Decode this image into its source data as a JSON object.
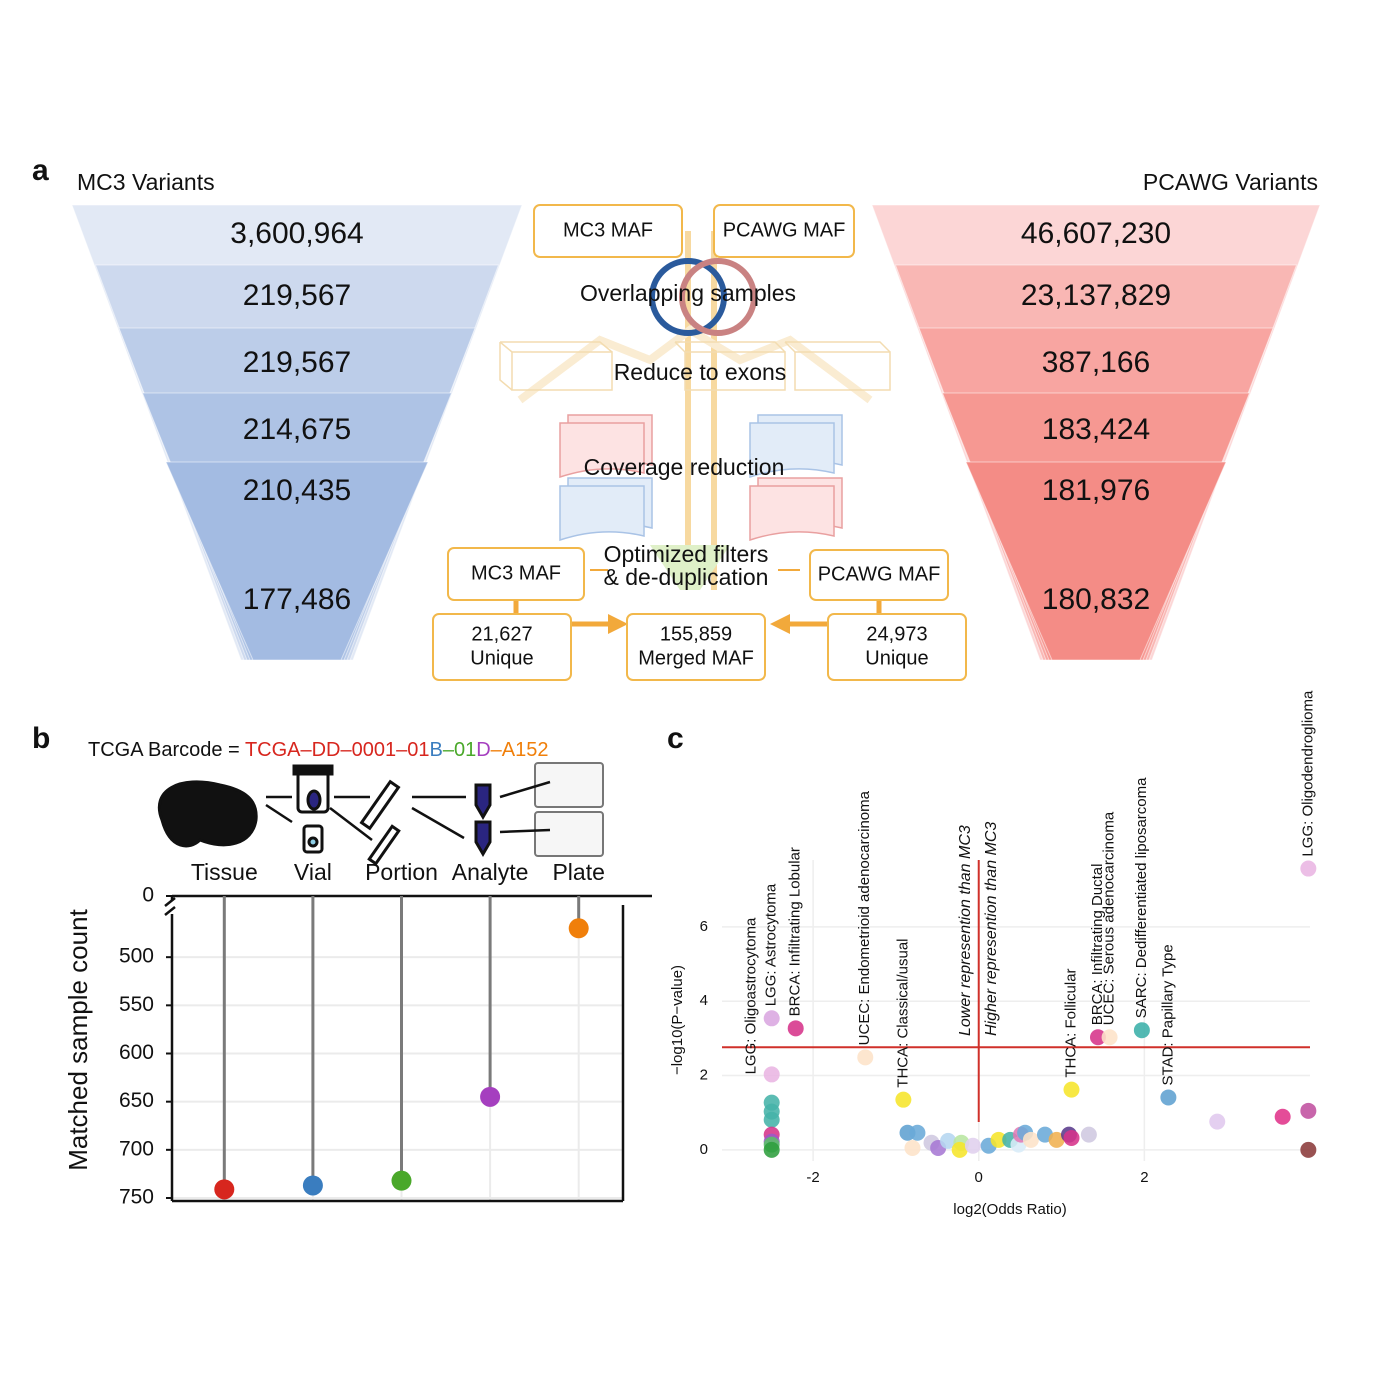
{
  "panel_a": {
    "label": "a",
    "left_title": "MC3 Variants",
    "right_title": "PCAWG Variants",
    "left_counts": [
      "3,600,964",
      "219,567",
      "219,567",
      "214,675",
      "210,435",
      "177,486"
    ],
    "right_counts": [
      "46,607,230",
      "23,137,829",
      "387,166",
      "183,424",
      "181,976",
      "180,832"
    ],
    "top_boxes": [
      "MC3 MAF",
      "PCAWG MAF"
    ],
    "steps": [
      "Overlapping samples",
      "Reduce to exons",
      "Coverage reduction",
      "Optimized filters",
      "& de-duplication"
    ],
    "bottom_boxes": [
      "MC3 MAF",
      "PCAWG MAF"
    ],
    "results": [
      {
        "count": "21,627",
        "label": "Unique"
      },
      {
        "count": "155,859",
        "label": "Merged MAF"
      },
      {
        "count": "24,973",
        "label": "Unique"
      }
    ]
  },
  "chart_data": [
    {
      "type": "lollipop",
      "panel_label": "b",
      "barcode_title": "TCGA Barcode = ",
      "barcode_parts": [
        {
          "text": "TCGA–DD–0001–01",
          "color": "#d7261e"
        },
        {
          "text": "B",
          "color": "#3a7dbf"
        },
        {
          "text": "–01",
          "color": "#4aa82a"
        },
        {
          "text": "D",
          "color": "#a53fbf"
        },
        {
          "text": "–A152",
          "color": "#f07f0a"
        }
      ],
      "categories": [
        "Tissue",
        "Vial",
        "Portion",
        "Analyte",
        "Plate"
      ],
      "values": [
        741,
        737,
        732,
        645,
        470
      ],
      "colors": [
        "#d7261e",
        "#3a7dbf",
        "#4aa82a",
        "#a53fbf",
        "#f07f0a"
      ],
      "y_label": "Matched sample count",
      "ylim": [
        450,
        750
      ],
      "yticks": [
        0,
        500,
        550,
        600,
        650,
        700,
        750
      ],
      "y_inverted": true,
      "axis_break": true,
      "grid": true
    },
    {
      "type": "scatter",
      "panel_label": "c",
      "x": [
        -2.5,
        -2.5,
        -2.21,
        -1.37,
        -0.91,
        1.12,
        1.44,
        1.58,
        1.97,
        2.29,
        3.98,
        -2.5,
        -2.5,
        -2.5,
        -2.5,
        -2.5,
        -2.5,
        -2.5,
        2.88,
        3.67,
        3.98,
        3.98,
        -0.86,
        -0.74,
        -0.8,
        -0.57,
        -0.49,
        -0.37,
        -0.21,
        -0.23,
        -0.07,
        0.12,
        0.24,
        0.38,
        0.48,
        0.51,
        0.56,
        0.63,
        0.8,
        0.94,
        1.09,
        1.12,
        1.33
      ],
      "values": [
        2.03,
        3.54,
        3.27,
        2.49,
        1.35,
        1.62,
        3.03,
        3.03,
        3.22,
        1.41,
        7.57,
        1.27,
        1.03,
        0.81,
        0.41,
        0.22,
        0.14,
        0.0,
        0.76,
        0.89,
        1.05,
        0.0,
        0.46,
        0.46,
        0.05,
        0.19,
        0.05,
        0.24,
        0.19,
        0.0,
        0.11,
        0.11,
        0.27,
        0.27,
        0.14,
        0.41,
        0.46,
        0.27,
        0.41,
        0.27,
        0.41,
        0.32,
        0.41
      ],
      "colors": [
        "#e9b5e3",
        "#d9a6e0",
        "#d6338a",
        "#fde3c8",
        "#f6e52a",
        "#f6e52a",
        "#d6338a",
        "#fde3c8",
        "#3aafa9",
        "#5fa0d0",
        "#e9b5e3",
        "#46b3a8",
        "#46b3a8",
        "#46b3a8",
        "#d6338a",
        "#9b59c8",
        "#5bbf6a",
        "#2e9e3e",
        "#e0c8ee",
        "#e0338a",
        "#c0509f",
        "#8b3a3a",
        "#5fa0d0",
        "#6aaad8",
        "#fde3c8",
        "#cfc8e0",
        "#a779d4",
        "#b5d6f0",
        "#b8e6a0",
        "#f6e52a",
        "#e0d0ee",
        "#6aaad8",
        "#f6e52a",
        "#46b3a8",
        "#d8ecf8",
        "#e07ab5",
        "#6aaad8",
        "#fde3c8",
        "#6aaad8",
        "#f0b050",
        "#5a3a8c",
        "#d6338a",
        "#cfc8e0"
      ],
      "point_labels": [
        "LGG: Oligoastrocytoma",
        "LGG: Astrocytoma",
        "BRCA: Infiltrating Lobular",
        "UCEC: Endometrioid adenocarcinoma",
        "THCA: Classical/usual",
        "THCA: Follicular",
        "BRCA: Infiltrating Ductal",
        "UCEC: Serous adenocarcinoma",
        "SARC: Dedifferentiated liposarcoma",
        "STAD: Papillary Type",
        "LGG: Oligodendroglioma",
        null,
        null,
        null,
        null,
        null,
        null,
        null,
        null,
        null,
        null,
        null,
        null,
        null,
        null,
        null,
        null,
        null,
        null,
        null,
        null,
        null,
        null,
        null,
        null,
        null,
        null,
        null,
        null,
        null,
        null,
        null,
        null
      ],
      "x_label": "log2(Odds Ratio)",
      "y_label": "−log10(P−value)",
      "xlim": [
        -3.1,
        4.0
      ],
      "ylim": [
        -0.3,
        7.8
      ],
      "xticks": [
        -2,
        0,
        2
      ],
      "yticks": [
        0,
        2,
        4,
        6
      ],
      "hline": 2.76,
      "vline": 0,
      "line_color": "#d0302a",
      "annotations": [
        "Lower represention than MC3",
        "Higher represention than MC3"
      ],
      "grid": true
    }
  ]
}
